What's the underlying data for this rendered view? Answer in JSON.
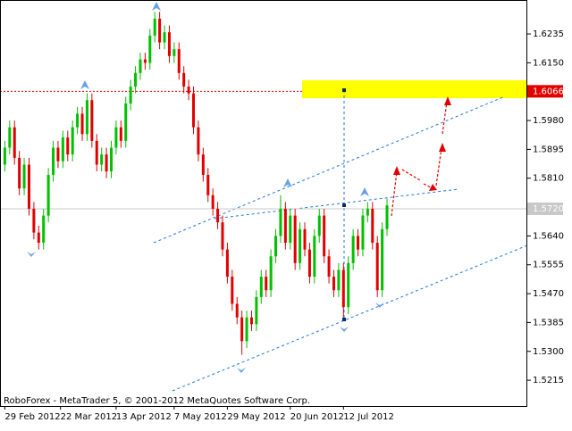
{
  "chart_data": {
    "type": "candlestick",
    "footer": "RoboForex - MetaTrader 5, © 2001-2012 MetaQuotes Software Corp.",
    "x": [
      0,
      1,
      2,
      3,
      4,
      5,
      6,
      7,
      8,
      9,
      10,
      11,
      12,
      13,
      14,
      15,
      16,
      17,
      18,
      19,
      20,
      21,
      22,
      23,
      24,
      25,
      26,
      27,
      28,
      29,
      30,
      31,
      32,
      33,
      34,
      35,
      36,
      37,
      38,
      39,
      40,
      41,
      42,
      43,
      44,
      45,
      46,
      47,
      48,
      49,
      50,
      51,
      52,
      53,
      54,
      55,
      56,
      57,
      58,
      59,
      60,
      61,
      62,
      63,
      64,
      65,
      66,
      67,
      68,
      69,
      70,
      71,
      72,
      73,
      74,
      75,
      76,
      77,
      78,
      79
    ],
    "open": [
      1.585,
      1.59,
      1.596,
      1.587,
      1.578,
      1.585,
      1.572,
      1.565,
      1.562,
      1.57,
      1.582,
      1.59,
      1.586,
      1.593,
      1.588,
      1.596,
      1.6,
      1.594,
      1.604,
      1.592,
      1.585,
      1.588,
      1.583,
      1.59,
      1.596,
      1.592,
      1.603,
      1.608,
      1.612,
      1.616,
      1.615,
      1.623,
      1.628,
      1.621,
      1.624,
      1.617,
      1.619,
      1.612,
      1.608,
      1.606,
      1.596,
      1.588,
      1.582,
      1.576,
      1.572,
      1.568,
      1.56,
      1.552,
      1.544,
      1.54,
      1.533,
      1.54,
      1.538,
      1.546,
      1.552,
      1.548,
      1.558,
      1.564,
      1.572,
      1.562,
      1.57,
      1.556,
      1.566,
      1.56,
      1.552,
      1.564,
      1.57,
      1.558,
      1.552,
      1.548,
      1.554,
      1.543,
      1.556,
      1.564,
      1.56,
      1.57,
      1.572,
      1.562,
      1.548,
      1.566
    ],
    "high": [
      1.592,
      1.598,
      1.598,
      1.589,
      1.587,
      1.587,
      1.574,
      1.567,
      1.572,
      1.584,
      1.592,
      1.592,
      1.595,
      1.595,
      1.598,
      1.602,
      1.602,
      1.606,
      1.606,
      1.594,
      1.59,
      1.59,
      1.592,
      1.598,
      1.598,
      1.605,
      1.61,
      1.614,
      1.618,
      1.618,
      1.625,
      1.63,
      1.63,
      1.626,
      1.626,
      1.621,
      1.621,
      1.614,
      1.61,
      1.608,
      1.598,
      1.59,
      1.584,
      1.578,
      1.574,
      1.57,
      1.562,
      1.554,
      1.546,
      1.542,
      1.542,
      1.542,
      1.548,
      1.554,
      1.554,
      1.56,
      1.566,
      1.576,
      1.574,
      1.572,
      1.572,
      1.568,
      1.568,
      1.562,
      1.566,
      1.572,
      1.572,
      1.56,
      1.554,
      1.556,
      1.556,
      1.558,
      1.566,
      1.566,
      1.572,
      1.574,
      1.574,
      1.564,
      1.568,
      1.575
    ],
    "low": [
      1.583,
      1.588,
      1.585,
      1.576,
      1.576,
      1.57,
      1.563,
      1.56,
      1.56,
      1.568,
      1.58,
      1.584,
      1.584,
      1.586,
      1.586,
      1.594,
      1.592,
      1.592,
      1.59,
      1.583,
      1.583,
      1.581,
      1.581,
      1.588,
      1.59,
      1.59,
      1.601,
      1.606,
      1.61,
      1.613,
      1.613,
      1.621,
      1.619,
      1.619,
      1.615,
      1.615,
      1.61,
      1.606,
      1.604,
      1.594,
      1.586,
      1.58,
      1.574,
      1.57,
      1.566,
      1.558,
      1.55,
      1.542,
      1.538,
      1.529,
      1.531,
      1.536,
      1.536,
      1.544,
      1.546,
      1.546,
      1.556,
      1.562,
      1.56,
      1.56,
      1.554,
      1.554,
      1.558,
      1.55,
      1.55,
      1.562,
      1.556,
      1.55,
      1.546,
      1.546,
      1.54,
      1.541,
      1.554,
      1.558,
      1.558,
      1.568,
      1.56,
      1.546,
      1.546,
      1.564
    ],
    "close": [
      1.59,
      1.596,
      1.587,
      1.578,
      1.585,
      1.572,
      1.565,
      1.562,
      1.57,
      1.582,
      1.59,
      1.586,
      1.593,
      1.588,
      1.596,
      1.6,
      1.594,
      1.604,
      1.592,
      1.585,
      1.588,
      1.583,
      1.59,
      1.596,
      1.592,
      1.603,
      1.608,
      1.612,
      1.616,
      1.615,
      1.623,
      1.628,
      1.621,
      1.624,
      1.617,
      1.619,
      1.612,
      1.608,
      1.606,
      1.596,
      1.588,
      1.582,
      1.576,
      1.572,
      1.568,
      1.56,
      1.552,
      1.544,
      1.54,
      1.533,
      1.54,
      1.538,
      1.546,
      1.552,
      1.548,
      1.558,
      1.564,
      1.572,
      1.562,
      1.57,
      1.556,
      1.566,
      1.56,
      1.552,
      1.564,
      1.57,
      1.558,
      1.552,
      1.548,
      1.554,
      1.543,
      1.556,
      1.564,
      1.56,
      1.57,
      1.572,
      1.562,
      1.548,
      1.566,
      1.573
    ],
    "up_color": "#00c000",
    "down_color": "#e00000",
    "xlim": [
      -1,
      108
    ],
    "xticks": [
      {
        "value": 0,
        "label": "29 Feb 2012"
      },
      {
        "value": 11.5,
        "label": "22 Mar 2012"
      },
      {
        "value": 23,
        "label": "13 Apr 2012"
      },
      {
        "value": 35,
        "label": "7 May 2012"
      },
      {
        "value": 46,
        "label": "29 May 2012"
      },
      {
        "value": 59,
        "label": "20 Jun 2012"
      },
      {
        "value": 70,
        "label": "12 Jul 2012"
      }
    ],
    "ylim": [
      1.5139,
      1.6335
    ],
    "yticks": [
      1.6235,
      {
        "value": 1.615,
        "label": "1.6150"
      },
      {
        "value": 1.598,
        "label": "1.5980"
      },
      1.5895,
      {
        "value": 1.581,
        "label": "1.5810"
      },
      {
        "value": 1.564,
        "label": "1.5640"
      },
      1.5555,
      {
        "value": 1.547,
        "label": "1.5470"
      },
      1.5385,
      {
        "value": 1.53,
        "label": "1.5300"
      },
      1.5215
    ],
    "target_line": 1.6066,
    "current_line": {
      "value": 1.572,
      "label": "1.5720"
    }
  }
}
